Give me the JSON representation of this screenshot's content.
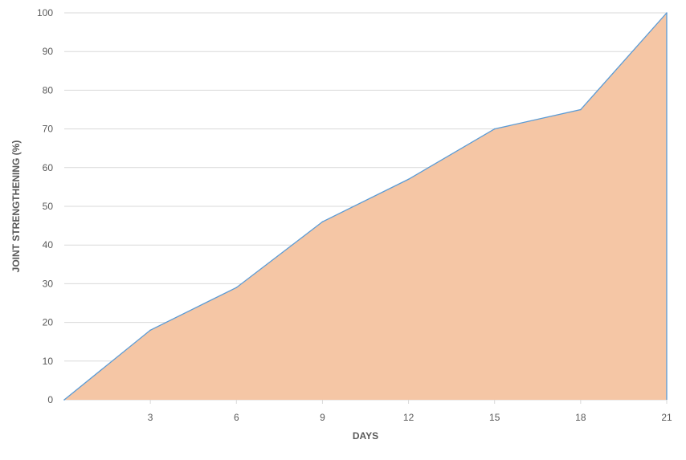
{
  "chart_data": {
    "type": "area",
    "title": "",
    "xlabel": "DAYS",
    "ylabel": "JOINT STRENGTHENING (%)",
    "x": [
      0,
      3,
      6,
      9,
      12,
      15,
      18,
      21
    ],
    "values": [
      0,
      18,
      29,
      46,
      57,
      70,
      75,
      100
    ],
    "x_tick_labels": [
      "3",
      "6",
      "9",
      "12",
      "15",
      "18",
      "21"
    ],
    "y_tick_labels": [
      "0",
      "10",
      "20",
      "30",
      "40",
      "50",
      "60",
      "70",
      "80",
      "90",
      "100"
    ],
    "xlim": [
      0,
      21
    ],
    "ylim": [
      0,
      100
    ],
    "grid": true,
    "legend": "none",
    "colors": {
      "fill": "#F5C6A5",
      "line": "#5B9BD5",
      "grid": "#D9D9D9"
    }
  }
}
